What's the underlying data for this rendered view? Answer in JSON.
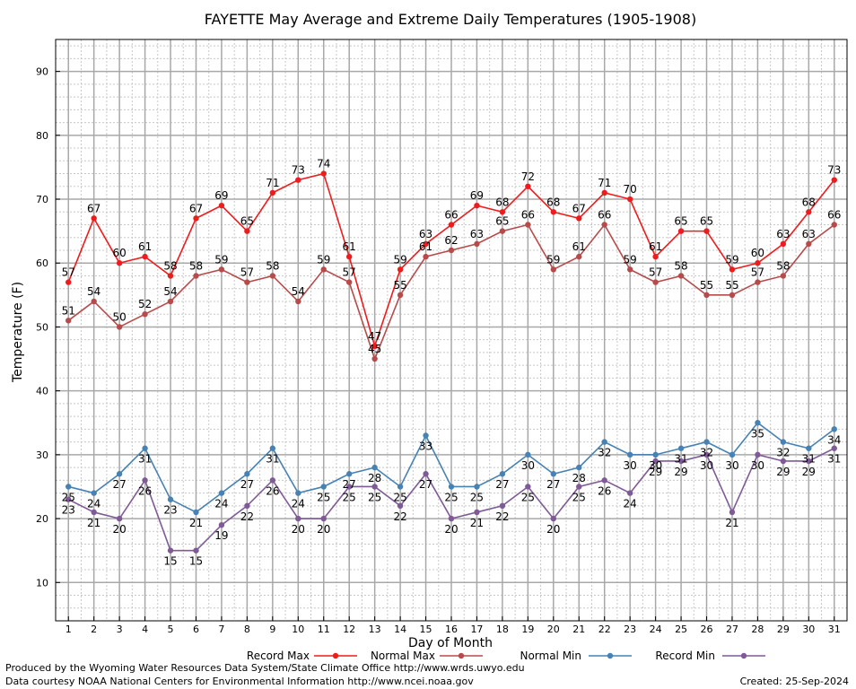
{
  "chart_data": {
    "type": "line",
    "title": "FAYETTE May Average and Extreme Daily Temperatures (1905-1908)",
    "xlabel": "Day of Month",
    "ylabel": "Temperature (F)",
    "ylim": [
      4,
      95
    ],
    "xlim": [
      0.5,
      31.5
    ],
    "yticks": [
      10,
      20,
      30,
      40,
      50,
      60,
      70,
      80,
      90
    ],
    "x": [
      1,
      2,
      3,
      4,
      5,
      6,
      7,
      8,
      9,
      10,
      11,
      12,
      13,
      14,
      15,
      16,
      17,
      18,
      19,
      20,
      21,
      22,
      23,
      24,
      25,
      26,
      27,
      28,
      29,
      30,
      31
    ],
    "grid": true,
    "legend_position": "bottom",
    "series": [
      {
        "name": "Record Max",
        "color": "#ee1c1c",
        "label_pos": "above",
        "values": [
          57,
          67,
          60,
          61,
          58,
          67,
          69,
          65,
          71,
          73,
          74,
          61,
          47,
          59,
          63,
          66,
          69,
          68,
          72,
          68,
          67,
          71,
          70,
          61,
          65,
          65,
          59,
          60,
          63,
          68,
          73
        ]
      },
      {
        "name": "Normal Max",
        "color": "#b74b4b",
        "label_pos": "above",
        "values": [
          51,
          54,
          50,
          52,
          54,
          58,
          59,
          57,
          58,
          54,
          59,
          57,
          45,
          55,
          61,
          62,
          63,
          65,
          66,
          59,
          61,
          66,
          59,
          57,
          58,
          55,
          55,
          57,
          58,
          63,
          66
        ]
      },
      {
        "name": "Normal Min",
        "color": "#4682b4",
        "label_pos": "below",
        "values": [
          25,
          24,
          27,
          31,
          23,
          21,
          24,
          27,
          31,
          24,
          25,
          27,
          28,
          25,
          33,
          25,
          25,
          27,
          30,
          27,
          28,
          32,
          30,
          30,
          31,
          32,
          30,
          35,
          32,
          31,
          34
        ]
      },
      {
        "name": "Record Min",
        "color": "#7f5a97",
        "label_pos": "below",
        "values": [
          23,
          21,
          20,
          26,
          15,
          15,
          19,
          22,
          26,
          20,
          20,
          25,
          25,
          22,
          27,
          20,
          21,
          22,
          25,
          20,
          25,
          26,
          24,
          29,
          29,
          30,
          21,
          30,
          29,
          29,
          31
        ]
      }
    ]
  },
  "footer": {
    "line1": "Produced by the Wyoming Water Resources Data System/State Climate Office http://www.wrds.uwyo.edu",
    "line2": "Data courtesy NOAA National Centers for Environmental Information http://www.ncei.noaa.gov",
    "created": "Created:  25-Sep-2024"
  }
}
